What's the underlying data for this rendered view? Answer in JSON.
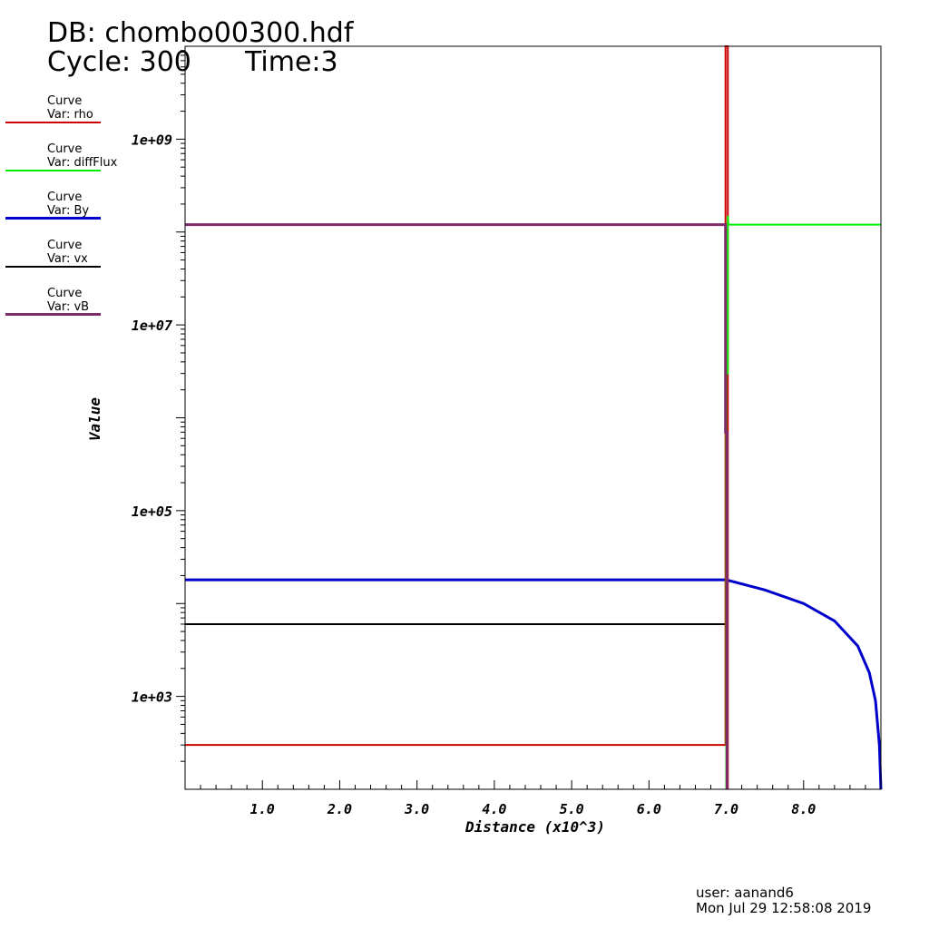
{
  "header": {
    "db_line": "DB: chombo00300.hdf",
    "cycle_line": "Cycle: 300",
    "time_line": "Time:3"
  },
  "legend": [
    {
      "title": "Curve",
      "label": "Var: rho",
      "color": "#cc0000"
    },
    {
      "title": "Curve",
      "label": "Var: diffFlux",
      "color": "#00ee00"
    },
    {
      "title": "Curve",
      "label": "Var: By",
      "color": "#0000cc"
    },
    {
      "title": "Curve",
      "label": "Var: vx",
      "color": "#000000"
    },
    {
      "title": "Curve",
      "label": "Var: vB",
      "color": "#7f2b6a"
    }
  ],
  "footer": {
    "user": "user: aanand6",
    "timestamp": "Mon Jul 29 12:58:08 2019"
  },
  "chart_data": {
    "type": "line",
    "xlabel": "Distance (x10^3)",
    "ylabel": "Value",
    "xlim": [
      0,
      9.0
    ],
    "ylim": [
      100.0,
      10000000000.0
    ],
    "y_scale": "log",
    "x_ticks": [
      1.0,
      2.0,
      3.0,
      4.0,
      5.0,
      6.0,
      7.0,
      8.0
    ],
    "x_tick_labels": [
      "1.0",
      "2.0",
      "3.0",
      "4.0",
      "5.0",
      "6.0",
      "7.0",
      "8.0"
    ],
    "y_ticks": [
      1000.0,
      100000.0,
      10000000.0,
      1000000000.0
    ],
    "y_tick_labels": [
      "1e+03",
      "1e+05",
      "1e+07",
      "1e+09"
    ],
    "grid": false,
    "series": [
      {
        "name": "rho",
        "color": "#cc0000",
        "points": [
          [
            0,
            300
          ],
          [
            6.99,
            300
          ],
          [
            6.99,
            10000000000
          ],
          [
            7.02,
            10000000000
          ],
          [
            7.02,
            100
          ]
        ]
      },
      {
        "name": "diffFlux",
        "color": "#00ee00",
        "points": [
          [
            7.0,
            100
          ],
          [
            7.0,
            3000000
          ],
          [
            7.02,
            3000000
          ],
          [
            7.02,
            150000000
          ],
          [
            7.03,
            120000000
          ],
          [
            9.0,
            120000000
          ]
        ]
      },
      {
        "name": "By",
        "color": "#0000cc",
        "points": [
          [
            0,
            18000
          ],
          [
            7.0,
            18000
          ],
          [
            7.5,
            14000
          ],
          [
            8.0,
            10000
          ],
          [
            8.4,
            6500
          ],
          [
            8.7,
            3500
          ],
          [
            8.85,
            1800
          ],
          [
            8.93,
            900
          ],
          [
            8.98,
            300
          ],
          [
            9.0,
            100
          ]
        ]
      },
      {
        "name": "vx",
        "color": "#000000",
        "points": [
          [
            0,
            6000
          ],
          [
            6.99,
            6000
          ]
        ]
      },
      {
        "name": "vB",
        "color": "#7f2b6a",
        "points": [
          [
            0,
            120000000
          ],
          [
            6.99,
            120000000
          ],
          [
            6.99,
            700000
          ],
          [
            7.01,
            700000
          ],
          [
            7.01,
            100
          ]
        ]
      }
    ]
  }
}
